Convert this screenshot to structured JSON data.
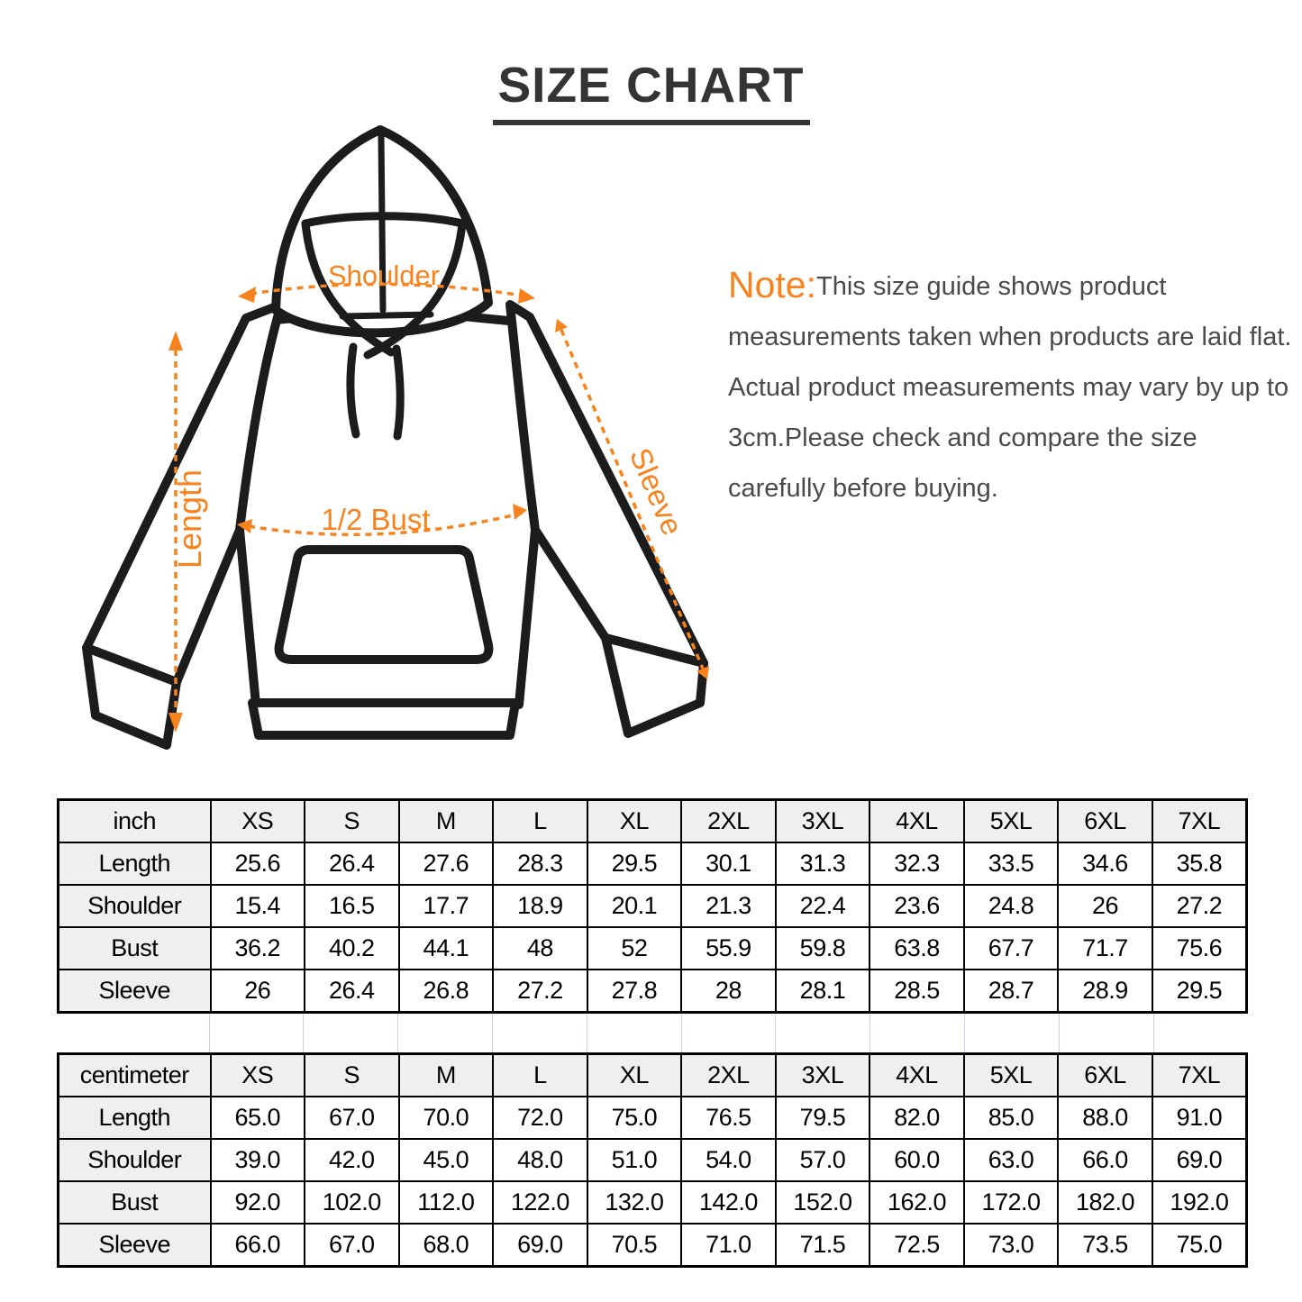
{
  "page": {
    "title": "SIZE CHART"
  },
  "note": {
    "label": "Note:",
    "body": "This size guide shows product measurements taken when products are laid flat. Actual product measurements may vary by up to 3cm.Please check and compare the size carefully before buying."
  },
  "diagram": {
    "accent_color": "#F6831D",
    "shoulder_label": "Shoulder",
    "length_label": "Length",
    "bust_label": "1/2 Bust",
    "sleeve_label": "Sleeve"
  },
  "tables": [
    {
      "unit_label": "inch",
      "sizes": [
        "XS",
        "S",
        "M",
        "L",
        "XL",
        "2XL",
        "3XL",
        "4XL",
        "5XL",
        "6XL",
        "7XL"
      ],
      "rows": [
        {
          "label": "Length",
          "values": [
            "25.6",
            "26.4",
            "27.6",
            "28.3",
            "29.5",
            "30.1",
            "31.3",
            "32.3",
            "33.5",
            "34.6",
            "35.8"
          ]
        },
        {
          "label": "Shoulder",
          "values": [
            "15.4",
            "16.5",
            "17.7",
            "18.9",
            "20.1",
            "21.3",
            "22.4",
            "23.6",
            "24.8",
            "26",
            "27.2"
          ]
        },
        {
          "label": "Bust",
          "values": [
            "36.2",
            "40.2",
            "44.1",
            "48",
            "52",
            "55.9",
            "59.8",
            "63.8",
            "67.7",
            "71.7",
            "75.6"
          ]
        },
        {
          "label": "Sleeve",
          "values": [
            "26",
            "26.4",
            "26.8",
            "27.2",
            "27.8",
            "28",
            "28.1",
            "28.5",
            "28.7",
            "28.9",
            "29.5"
          ]
        }
      ]
    },
    {
      "unit_label": "centimeter",
      "sizes": [
        "XS",
        "S",
        "M",
        "L",
        "XL",
        "2XL",
        "3XL",
        "4XL",
        "5XL",
        "6XL",
        "7XL"
      ],
      "rows": [
        {
          "label": "Length",
          "values": [
            "65.0",
            "67.0",
            "70.0",
            "72.0",
            "75.0",
            "76.5",
            "79.5",
            "82.0",
            "85.0",
            "88.0",
            "91.0"
          ]
        },
        {
          "label": "Shoulder",
          "values": [
            "39.0",
            "42.0",
            "45.0",
            "48.0",
            "51.0",
            "54.0",
            "57.0",
            "60.0",
            "63.0",
            "66.0",
            "69.0"
          ]
        },
        {
          "label": "Bust",
          "values": [
            "92.0",
            "102.0",
            "112.0",
            "122.0",
            "132.0",
            "142.0",
            "152.0",
            "162.0",
            "172.0",
            "182.0",
            "192.0"
          ]
        },
        {
          "label": "Sleeve",
          "values": [
            "66.0",
            "67.0",
            "68.0",
            "69.0",
            "70.5",
            "71.0",
            "71.5",
            "72.5",
            "73.0",
            "73.5",
            "75.0"
          ]
        }
      ]
    }
  ]
}
